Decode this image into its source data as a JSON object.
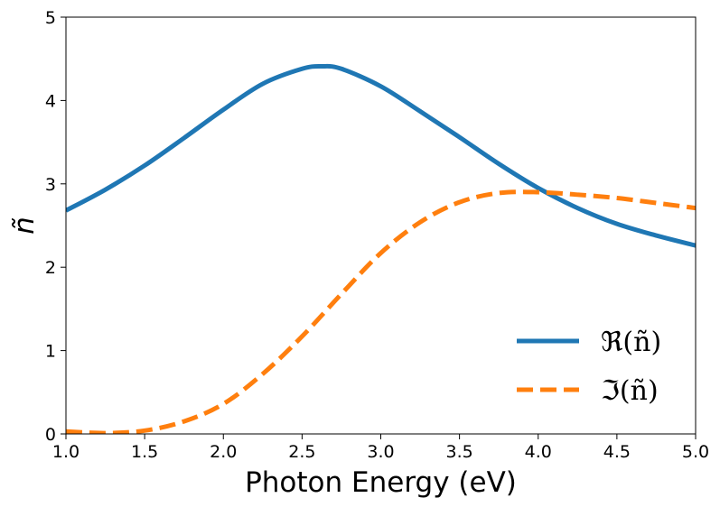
{
  "chart_data": {
    "type": "line",
    "xlabel": "Photon Energy (eV)",
    "ylabel": "ñ",
    "xlim": [
      1.0,
      5.0
    ],
    "ylim": [
      0,
      5
    ],
    "xticks": [
      "1.0",
      "1.5",
      "2.0",
      "2.5",
      "3.0",
      "3.5",
      "4.0",
      "4.5",
      "5.0"
    ],
    "yticks": [
      "0",
      "1",
      "2",
      "3",
      "4",
      "5"
    ],
    "grid": false,
    "legend_position": "lower-right",
    "series": [
      {
        "name": "ℜ(ñ)",
        "style": "solid",
        "color": "#1f77b4",
        "x": [
          1.0,
          1.25,
          1.5,
          1.75,
          2.0,
          2.25,
          2.5,
          2.625,
          2.75,
          3.0,
          3.25,
          3.5,
          3.75,
          4.0,
          4.25,
          4.5,
          4.75,
          5.0
        ],
        "y": [
          2.68,
          2.93,
          3.22,
          3.55,
          3.89,
          4.2,
          4.38,
          4.41,
          4.38,
          4.17,
          3.87,
          3.56,
          3.24,
          2.95,
          2.71,
          2.52,
          2.38,
          2.26
        ]
      },
      {
        "name": "ℑ(ñ)",
        "style": "dashed",
        "color": "#ff7f0e",
        "x": [
          1.0,
          1.25,
          1.5,
          1.75,
          2.0,
          2.25,
          2.5,
          2.75,
          3.0,
          3.25,
          3.5,
          3.75,
          4.0,
          4.25,
          4.5,
          4.75,
          5.0
        ],
        "y": [
          0.03,
          0.01,
          0.04,
          0.15,
          0.36,
          0.72,
          1.17,
          1.68,
          2.17,
          2.54,
          2.78,
          2.89,
          2.9,
          2.87,
          2.83,
          2.77,
          2.71
        ]
      }
    ]
  }
}
